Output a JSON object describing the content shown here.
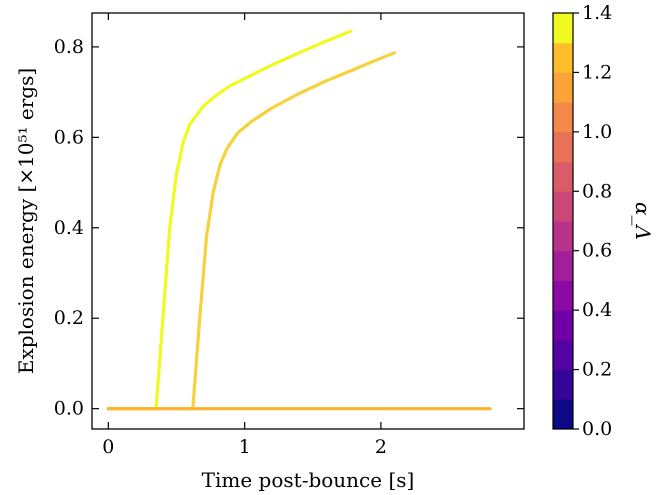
{
  "chart_data": {
    "type": "line",
    "xlabel": "Time post-bounce [s]",
    "ylabel": "Explosion energy [×10⁵¹ ergs]",
    "xlim": [
      -0.12,
      3.05
    ],
    "ylim": [
      -0.045,
      0.875
    ],
    "xticks": [
      "0",
      "1",
      "2"
    ],
    "xtick_values": [
      0,
      1,
      2
    ],
    "yticks": [
      "0.0",
      "0.2",
      "0.4",
      "0.6",
      "0.8"
    ],
    "ytick_values": [
      0.0,
      0.2,
      0.4,
      0.6,
      0.8
    ],
    "grid": false,
    "colorbar": {
      "label": "α_Λ",
      "range": [
        0.0,
        1.4
      ],
      "ticks": [
        "0.0",
        "0.2",
        "0.4",
        "0.6",
        "0.8",
        "1.0",
        "1.2",
        "1.4"
      ],
      "tick_values": [
        0.0,
        0.2,
        0.4,
        0.6,
        0.8,
        1.0,
        1.2,
        1.4
      ],
      "colormap": "plasma",
      "levels": 14
    },
    "series": [
      {
        "alpha": 1.4,
        "color": "#f0f921",
        "x": [
          0.0,
          0.35,
          0.4,
          0.45,
          0.5,
          0.55,
          0.6,
          0.7,
          0.8,
          0.9,
          1.0,
          1.2,
          1.4,
          1.6,
          1.78
        ],
        "y": [
          0.0,
          0.0,
          0.2,
          0.4,
          0.52,
          0.59,
          0.63,
          0.67,
          0.695,
          0.715,
          0.73,
          0.76,
          0.787,
          0.813,
          0.835
        ]
      },
      {
        "alpha": 1.2,
        "color": "#f7d13c",
        "x": [
          0.0,
          0.62,
          0.67,
          0.72,
          0.77,
          0.82,
          0.87,
          0.95,
          1.05,
          1.2,
          1.4,
          1.6,
          1.8,
          2.0,
          2.1
        ],
        "y": [
          0.0,
          0.0,
          0.2,
          0.38,
          0.48,
          0.54,
          0.575,
          0.61,
          0.635,
          0.665,
          0.697,
          0.725,
          0.75,
          0.775,
          0.787
        ]
      },
      {
        "alpha": 1.1,
        "color": "#fbb32f",
        "x": [
          0.0,
          2.8
        ],
        "y": [
          0.0,
          0.0
        ]
      }
    ]
  }
}
